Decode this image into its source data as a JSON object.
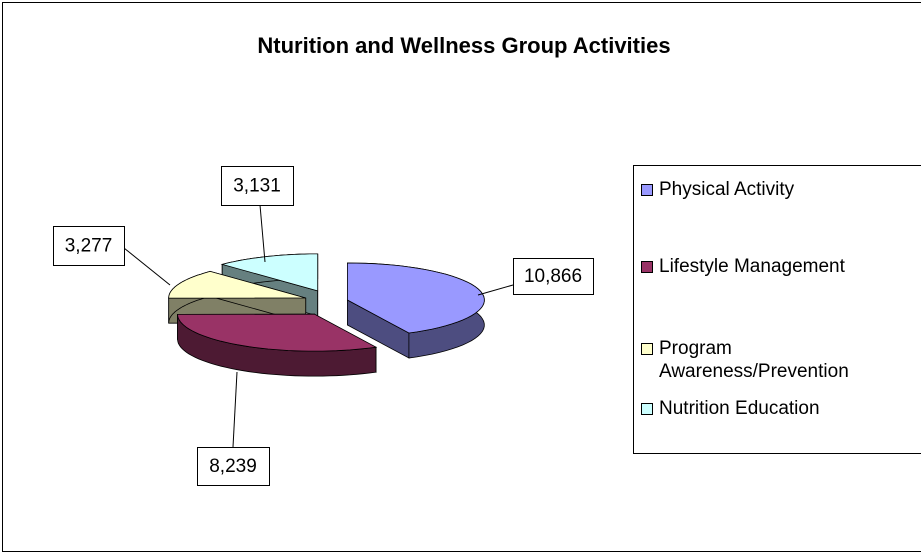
{
  "chart_data": {
    "type": "pie",
    "title": "Nturition and Wellness Group Activities",
    "categories": [
      "Physical Activity",
      "Lifestyle Management",
      "Program Awareness/Prevention",
      "Nutrition Education"
    ],
    "values": [
      10866,
      8239,
      3277,
      3131
    ],
    "value_labels": [
      "10,866",
      "8,239",
      "3,277",
      "3,131"
    ],
    "colors": [
      "#9999ff",
      "#993366",
      "#ffffcc",
      "#ccffff"
    ],
    "legend": "right"
  }
}
